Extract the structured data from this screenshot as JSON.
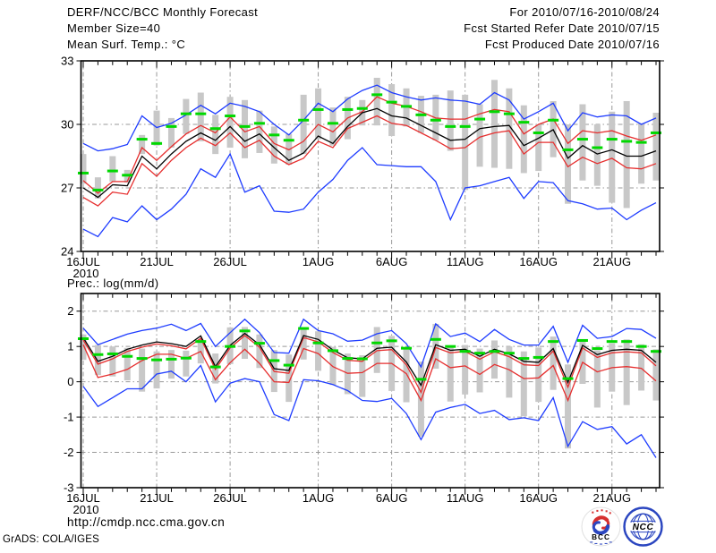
{
  "header": {
    "left_lines": [
      "DERF/NCC/BCC Monthly Forecast",
      "Member Size=40",
      "Mean Surf. Temp.: °C"
    ],
    "right_lines": [
      "For 2010/07/16-2010/08/24",
      "Fcst Started Refer Date 2010/07/15",
      "Fcst Produced Date 2010/07/16"
    ]
  },
  "footer": {
    "url": "http://cmdp.ncc.cma.gov.cn",
    "credit": "GrADS: COLA/IGES",
    "logo_bcc": "BCC",
    "logo_ncc": "NCC"
  },
  "colors": {
    "envelope_blue": "#1e3cff",
    "band_red": "#e62e2e",
    "mean_black": "#000000",
    "climatology_green": "#00d800",
    "spread_bar_grey": "#c8c8c8",
    "grid_grey": "#999999",
    "frame_black": "#000000",
    "logo_blue": "#2b46c0",
    "logo_red": "#d73030"
  },
  "chart_data": [
    {
      "name": "temperature-forecast-panel",
      "type": "line",
      "title": "Mean Surf. Temp.: °C",
      "ylabel": "°C",
      "ylim": [
        24,
        33
      ],
      "yticks": [
        24,
        27,
        30,
        33
      ],
      "grid": true,
      "n_points": 40,
      "xticks": [
        {
          "day": 0,
          "label": "16JUL",
          "sub": "2010"
        },
        {
          "day": 5,
          "label": "21JUL"
        },
        {
          "day": 10,
          "label": "26JUL"
        },
        {
          "day": 16,
          "label": "1AUG"
        },
        {
          "day": 21,
          "label": "6AUG"
        },
        {
          "day": 26,
          "label": "11AUG"
        },
        {
          "day": 31,
          "label": "16AUG"
        },
        {
          "day": 36,
          "label": "21AUG"
        }
      ],
      "series": [
        {
          "name": "upper-envelope-blue",
          "color": "#1e3cff",
          "values": [
            29.1,
            28.75,
            28.85,
            29.05,
            30.4,
            29.85,
            30.05,
            30.45,
            30.9,
            30.5,
            31.0,
            30.85,
            30.6,
            30.0,
            29.5,
            30.2,
            31.0,
            30.6,
            31.2,
            31.6,
            31.85,
            31.5,
            31.3,
            31.15,
            31.25,
            31.15,
            31.1,
            30.95,
            31.5,
            31.15,
            30.25,
            30.6,
            31.0,
            29.7,
            30.55,
            30.35,
            30.45,
            30.4,
            30.0,
            30.3
          ]
        },
        {
          "name": "upper-band-red",
          "color": "#e62e2e",
          "values": [
            27.35,
            26.75,
            27.3,
            27.3,
            28.9,
            28.3,
            28.95,
            29.55,
            29.95,
            29.6,
            30.35,
            29.65,
            29.9,
            29.1,
            28.8,
            29.2,
            30.0,
            29.65,
            30.3,
            30.6,
            31.3,
            31.0,
            30.85,
            30.6,
            30.3,
            30.25,
            30.25,
            30.5,
            30.7,
            30.6,
            29.55,
            30.0,
            30.25,
            29.1,
            29.7,
            29.6,
            29.7,
            29.45,
            29.25,
            29.5
          ]
        },
        {
          "name": "lower-band-red",
          "color": "#e62e2e",
          "values": [
            26.55,
            26.15,
            26.8,
            26.7,
            28.15,
            27.55,
            28.3,
            28.9,
            29.35,
            29.0,
            29.6,
            28.9,
            29.25,
            28.5,
            28.1,
            28.4,
            29.2,
            28.9,
            29.8,
            30.1,
            30.4,
            30.05,
            29.95,
            29.6,
            29.25,
            28.85,
            28.9,
            29.4,
            29.6,
            29.7,
            28.6,
            29.15,
            29.15,
            28.0,
            28.45,
            28.15,
            28.4,
            27.95,
            27.9,
            28.15
          ]
        },
        {
          "name": "lower-envelope-blue",
          "color": "#1e3cff",
          "values": [
            25.05,
            24.7,
            25.6,
            25.4,
            26.15,
            25.5,
            26.0,
            26.7,
            27.9,
            27.5,
            28.6,
            26.8,
            27.1,
            25.9,
            25.85,
            26.0,
            26.8,
            27.4,
            28.3,
            28.9,
            28.1,
            28.05,
            28.0,
            28.0,
            27.3,
            25.5,
            27.0,
            27.1,
            27.3,
            27.5,
            26.5,
            27.3,
            27.25,
            26.4,
            26.25,
            26.0,
            26.05,
            25.5,
            25.95,
            26.3
          ]
        },
        {
          "name": "ensemble-mean-black",
          "color": "#000000",
          "values": [
            27.0,
            26.55,
            27.15,
            27.1,
            28.5,
            27.9,
            28.6,
            29.2,
            29.6,
            29.25,
            29.9,
            29.2,
            29.55,
            28.9,
            28.3,
            28.65,
            29.45,
            29.1,
            29.9,
            30.55,
            30.75,
            30.4,
            30.3,
            29.95,
            29.6,
            29.25,
            29.3,
            29.8,
            29.9,
            29.95,
            29.0,
            29.35,
            29.75,
            28.4,
            29.0,
            28.6,
            28.8,
            28.5,
            28.5,
            28.75
          ]
        }
      ],
      "climatology_green_dashes": [
        27.7,
        26.9,
        27.8,
        27.6,
        29.3,
        29.1,
        29.9,
        30.5,
        30.5,
        29.8,
        30.4,
        29.9,
        30.05,
        29.5,
        29.25,
        30.2,
        30.7,
        30.05,
        30.7,
        30.75,
        31.4,
        31.05,
        30.85,
        30.45,
        30.2,
        29.9,
        29.9,
        30.25,
        30.6,
        30.5,
        30.1,
        29.6,
        30.2,
        28.8,
        29.3,
        28.9,
        29.3,
        29.2,
        29.15,
        29.6
      ],
      "ensemble_spread_bars": [
        [
          27.2,
          28.6
        ],
        [
          26.5,
          27.5
        ],
        [
          27.3,
          28.5
        ],
        [
          27.25,
          27.85
        ],
        [
          28.6,
          29.5
        ],
        [
          29.0,
          30.65
        ],
        [
          28.9,
          30.3
        ],
        [
          29.55,
          31.2
        ],
        [
          29.2,
          31.5
        ],
        [
          28.6,
          30.45
        ],
        [
          28.9,
          31.3
        ],
        [
          28.4,
          31.15
        ],
        [
          28.65,
          30.65
        ],
        [
          28.15,
          29.9
        ],
        [
          28.1,
          29.55
        ],
        [
          28.6,
          31.4
        ],
        [
          29.3,
          31.7
        ],
        [
          29.0,
          30.8
        ],
        [
          29.3,
          31.3
        ],
        [
          29.95,
          31.15
        ],
        [
          29.95,
          32.2
        ],
        [
          29.45,
          31.9
        ],
        [
          29.9,
          31.7
        ],
        [
          29.6,
          31.35
        ],
        [
          29.25,
          31.4
        ],
        [
          28.75,
          31.6
        ],
        [
          26.9,
          31.4
        ],
        [
          28.0,
          30.95
        ],
        [
          27.95,
          32.1
        ],
        [
          27.9,
          31.7
        ],
        [
          27.7,
          30.9
        ],
        [
          27.8,
          30.0
        ],
        [
          28.45,
          31.1
        ],
        [
          26.25,
          30.0
        ],
        [
          27.35,
          30.95
        ],
        [
          27.1,
          30.0
        ],
        [
          26.3,
          30.6
        ],
        [
          26.05,
          31.1
        ],
        [
          27.2,
          30.05
        ],
        [
          27.35,
          30.55
        ]
      ]
    },
    {
      "name": "precipitation-forecast-panel",
      "type": "line",
      "title": "Prec.: log(mm/d)",
      "ylabel": "log(mm/d)",
      "ylim": [
        -3,
        2.5
      ],
      "yticks": [
        -3,
        -2,
        -1,
        0,
        1,
        2
      ],
      "grid": true,
      "n_points": 40,
      "xticks": [
        {
          "day": 0,
          "label": "16JUL",
          "sub": "2010"
        },
        {
          "day": 5,
          "label": "21JUL"
        },
        {
          "day": 10,
          "label": "26JUL"
        },
        {
          "day": 16,
          "label": "1AUG"
        },
        {
          "day": 21,
          "label": "6AUG"
        },
        {
          "day": 26,
          "label": "11AUG"
        },
        {
          "day": 31,
          "label": "16AUG"
        },
        {
          "day": 36,
          "label": "21AUG"
        }
      ],
      "series": [
        {
          "name": "upper-envelope-blue",
          "color": "#1e3cff",
          "values": [
            1.52,
            1.05,
            1.2,
            1.35,
            1.45,
            1.52,
            1.63,
            1.45,
            1.65,
            1.0,
            1.39,
            1.77,
            1.39,
            0.83,
            0.81,
            1.77,
            1.45,
            1.36,
            1.15,
            1.18,
            1.36,
            1.45,
            1.08,
            0.42,
            1.64,
            1.28,
            1.38,
            1.14,
            1.48,
            1.2,
            1.04,
            1.04,
            1.57,
            0.55,
            1.6,
            1.23,
            1.28,
            1.51,
            1.48,
            1.23
          ]
        },
        {
          "name": "upper-band-red",
          "color": "#e62e2e",
          "values": [
            1.18,
            0.5,
            0.65,
            0.86,
            0.98,
            1.07,
            1.02,
            0.93,
            1.23,
            0.35,
            0.96,
            1.31,
            0.98,
            0.29,
            0.24,
            1.25,
            1.13,
            0.83,
            0.61,
            0.58,
            0.88,
            0.91,
            0.48,
            -0.3,
            0.97,
            0.82,
            0.86,
            0.64,
            0.85,
            0.71,
            0.48,
            0.46,
            0.87,
            -0.15,
            0.96,
            0.69,
            0.82,
            0.85,
            0.82,
            0.45
          ]
        },
        {
          "name": "lower-band-red",
          "color": "#e62e2e",
          "values": [
            1.05,
            0.12,
            0.22,
            0.35,
            0.6,
            0.78,
            0.78,
            0.66,
            0.86,
            0.06,
            0.54,
            0.92,
            0.52,
            0.0,
            -0.02,
            0.94,
            0.8,
            0.43,
            0.24,
            0.26,
            0.52,
            0.52,
            0.23,
            -0.53,
            0.65,
            0.4,
            0.45,
            0.21,
            0.49,
            0.34,
            0.09,
            0.11,
            0.46,
            -0.53,
            0.55,
            0.28,
            0.4,
            0.43,
            0.38,
            0.02
          ]
        },
        {
          "name": "lower-envelope-blue",
          "color": "#1e3cff",
          "values": [
            -0.13,
            -0.7,
            -0.45,
            -0.2,
            -0.2,
            0.22,
            0.3,
            0.0,
            0.46,
            -0.57,
            -0.04,
            0.09,
            0.0,
            -0.93,
            -1.1,
            0.06,
            0.03,
            -0.08,
            -0.25,
            -0.53,
            -0.56,
            -0.47,
            -0.9,
            -1.64,
            -0.86,
            -0.73,
            -0.64,
            -0.9,
            -0.81,
            -1.07,
            -1.02,
            -1.1,
            -0.45,
            -1.83,
            -1.13,
            -1.35,
            -1.27,
            -1.76,
            -1.5,
            -2.15
          ]
        },
        {
          "name": "ensemble-mean-black",
          "color": "#000000",
          "values": [
            1.25,
            0.58,
            0.72,
            0.92,
            1.04,
            1.13,
            1.08,
            1.0,
            1.3,
            0.43,
            1.03,
            1.37,
            1.05,
            0.37,
            0.32,
            1.31,
            1.2,
            0.9,
            0.68,
            0.65,
            0.95,
            0.98,
            0.56,
            -0.1,
            1.05,
            0.89,
            0.92,
            0.72,
            0.92,
            0.79,
            0.58,
            0.55,
            0.94,
            -0.02,
            1.03,
            0.77,
            0.89,
            0.92,
            0.89,
            0.55
          ]
        }
      ],
      "climatology_green_dashes": [
        1.22,
        0.77,
        0.79,
        0.72,
        0.66,
        0.62,
        0.64,
        0.67,
        1.14,
        0.42,
        1.0,
        1.44,
        1.09,
        0.6,
        0.47,
        1.51,
        1.1,
        0.88,
        0.66,
        0.65,
        1.1,
        1.16,
        0.95,
        0.07,
        1.2,
        1.0,
        0.86,
        0.81,
        0.86,
        0.81,
        0.66,
        0.69,
        1.14,
        0.09,
        1.17,
        0.94,
        1.14,
        1.14,
        1.0,
        0.86
      ],
      "ensemble_spread_bars": [
        [
          0.62,
          1.34
        ],
        [
          0.19,
          1.04
        ],
        [
          0.15,
          1.0
        ],
        [
          0.04,
          0.96
        ],
        [
          -0.28,
          0.94
        ],
        [
          -0.19,
          0.86
        ],
        [
          0.09,
          0.9
        ],
        [
          0.15,
          0.88
        ],
        [
          0.52,
          1.2
        ],
        [
          -0.05,
          0.8
        ],
        [
          0.5,
          1.54
        ],
        [
          0.65,
          1.55
        ],
        [
          0.39,
          1.34
        ],
        [
          -0.29,
          0.9
        ],
        [
          -0.57,
          0.77
        ],
        [
          0.63,
          1.49
        ],
        [
          0.31,
          1.43
        ],
        [
          -0.09,
          0.99
        ],
        [
          -0.35,
          0.8
        ],
        [
          -0.43,
          0.75
        ],
        [
          0.25,
          1.55
        ],
        [
          -0.26,
          1.3
        ],
        [
          -0.58,
          0.94
        ],
        [
          -1.55,
          0.57
        ],
        [
          0.37,
          1.64
        ],
        [
          -0.56,
          1.0
        ],
        [
          -0.36,
          1.04
        ],
        [
          -0.3,
          0.94
        ],
        [
          0.09,
          1.17
        ],
        [
          -0.45,
          1.0
        ],
        [
          -0.98,
          0.86
        ],
        [
          -0.57,
          0.97
        ],
        [
          -0.23,
          1.28
        ],
        [
          -1.89,
          0.49
        ],
        [
          -0.06,
          1.2
        ],
        [
          -0.73,
          0.89
        ],
        [
          -0.28,
          1.09
        ],
        [
          -0.66,
          1.2
        ],
        [
          -0.25,
          1.06
        ],
        [
          -0.53,
          0.92
        ]
      ]
    }
  ]
}
